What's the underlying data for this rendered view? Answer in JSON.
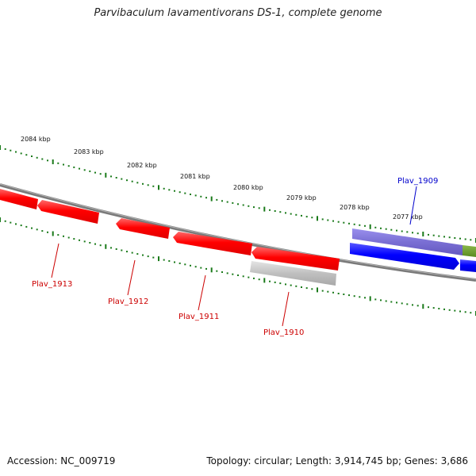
{
  "title": "Parvibaculum lavamentivorans DS-1, complete genome",
  "footer": {
    "accession": "Accession: NC_009719",
    "summary": "Topology: circular; Length: 3,914,745 bp; Genes: 3,686"
  },
  "colors": {
    "reverse_gene": "#ff0000",
    "forward_gene": "#0000ff",
    "pseudo_gene": "#c0c0c0",
    "forward_feature": "#7a6fd4",
    "other_feature": "#6b9a2a",
    "backbone": "#7a7a7a",
    "tick": "#1a7a1a",
    "reverse_label": "#cc0000",
    "forward_label": "#0000cc"
  },
  "scale_labels": [
    "2084 kbp",
    "2083 kbp",
    "2082 kbp",
    "2081 kbp",
    "2080 kbp",
    "2079 kbp",
    "2078 kbp",
    "2077 kbp"
  ],
  "gene_labels": [
    {
      "text": "Plav_1913",
      "strand": "reverse"
    },
    {
      "text": "Plav_1912",
      "strand": "reverse"
    },
    {
      "text": "Plav_1911",
      "strand": "reverse"
    },
    {
      "text": "Plav_1910",
      "strand": "reverse"
    },
    {
      "text": "Plav_1909",
      "strand": "forward"
    }
  ]
}
